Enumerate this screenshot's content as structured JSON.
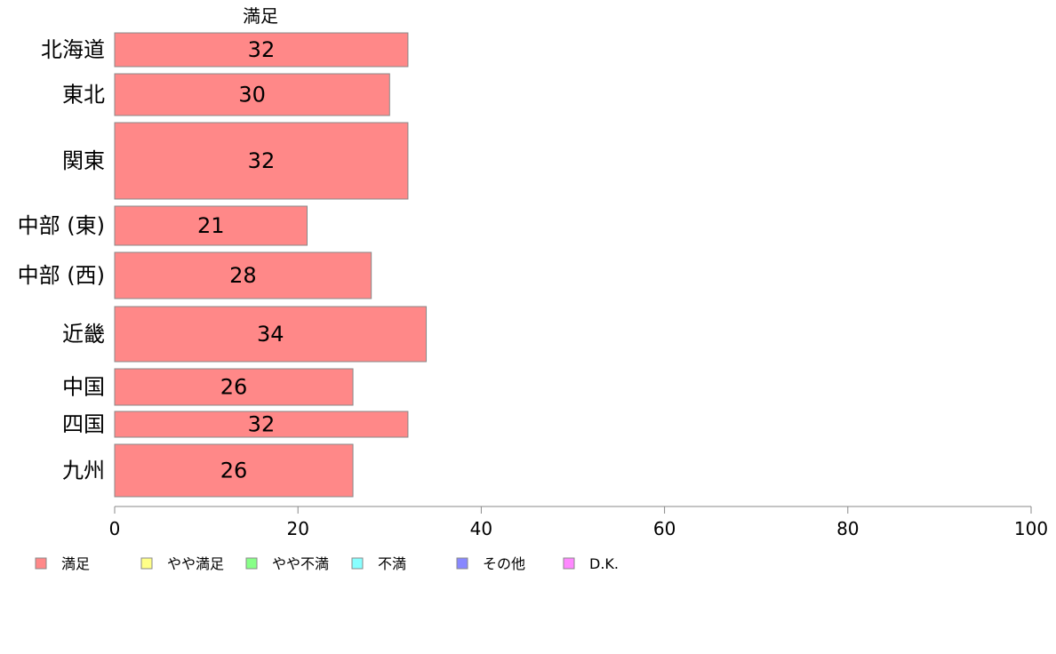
{
  "chart_data": {
    "type": "bar",
    "orientation": "horizontal",
    "series_title": "満足",
    "categories": [
      "北海道",
      "東北",
      "関東",
      "中部 (東)",
      "中部 (西)",
      "近畿",
      "中国",
      "四国",
      "九州"
    ],
    "values": [
      32,
      30,
      32,
      21,
      28,
      34,
      26,
      32,
      26
    ],
    "value_labels": [
      "32",
      "30",
      "32",
      "21",
      "28",
      "34",
      "26",
      "32",
      "26"
    ],
    "xlim": [
      0,
      100
    ],
    "x_ticks": [
      0,
      20,
      40,
      60,
      80,
      100
    ],
    "x_tick_labels": [
      "0",
      "20",
      "40",
      "60",
      "80",
      "100"
    ],
    "bar_color": "#ff8888",
    "bar_border_color": "#888888",
    "grid": false,
    "legend_position": "bottom",
    "legend": [
      {
        "label": "満足",
        "color": "#ff8888"
      },
      {
        "label": "やや満足",
        "color": "#ffff88"
      },
      {
        "label": "やや不満",
        "color": "#88ff88"
      },
      {
        "label": "不満",
        "color": "#88ffff"
      },
      {
        "label": "その他",
        "color": "#8888ff"
      },
      {
        "label": "D.K.",
        "color": "#ff88ff"
      }
    ]
  }
}
